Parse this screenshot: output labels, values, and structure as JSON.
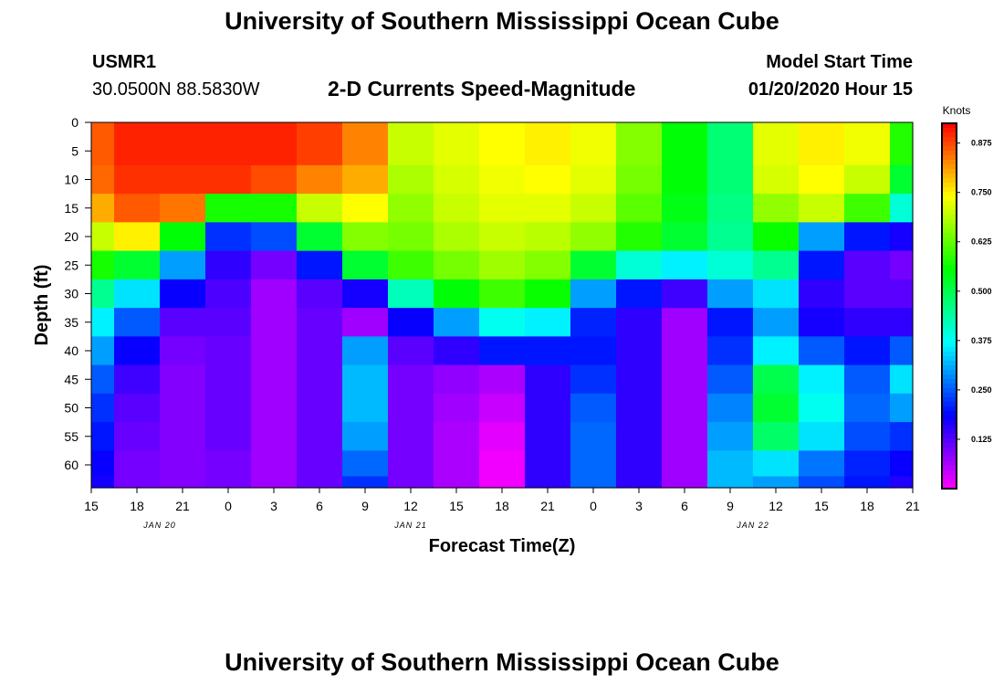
{
  "header": {
    "title": "University of Southern Mississippi Ocean Cube",
    "station": "USMR1",
    "coords": "30.0500N 88.5830W",
    "subtitle": "2-D Currents Speed-Magnitude",
    "model_label": "Model Start Time",
    "model_time": "01/20/2020 Hour 15"
  },
  "footer": {
    "title": "University of Southern Mississippi Ocean Cube"
  },
  "chart_data": {
    "type": "heatmap",
    "title": "2-D Currents Speed-Magnitude",
    "xlabel": "Forecast Time(Z)",
    "ylabel": "Depth (ft)",
    "x_ticks": [
      "15",
      "18",
      "21",
      "0",
      "3",
      "6",
      "9",
      "12",
      "15",
      "18",
      "21",
      "0",
      "3",
      "6",
      "9",
      "12",
      "15",
      "18",
      "21"
    ],
    "date_labels": [
      {
        "label": "JAN 20",
        "tick_index": 1.5
      },
      {
        "label": "JAN 21",
        "tick_index": 7
      },
      {
        "label": "JAN 22",
        "tick_index": 14.5
      }
    ],
    "y_ticks": [
      0,
      5,
      10,
      15,
      20,
      25,
      30,
      35,
      40,
      45,
      50,
      55,
      60
    ],
    "ylim": [
      0,
      64
    ],
    "colorbar": {
      "title": "Knots",
      "ticks": [
        "0.875",
        "0.750",
        "0.625",
        "0.500",
        "0.375",
        "0.250",
        "0.125"
      ],
      "range": [
        0,
        0.925
      ]
    },
    "times": [
      "15",
      "18",
      "21",
      "0",
      "3",
      "6",
      "9",
      "12",
      "15",
      "18",
      "21",
      "0",
      "3",
      "6",
      "9",
      "12",
      "15",
      "18",
      "21"
    ],
    "depths": [
      0,
      5,
      10,
      15,
      20,
      25,
      30,
      35,
      40,
      45,
      50,
      55,
      60,
      64
    ],
    "values": [
      [
        0.86,
        0.86,
        0.85,
        0.8,
        0.7,
        0.57,
        0.45,
        0.36,
        0.3,
        0.25,
        0.22,
        0.2,
        0.18,
        0.17
      ],
      [
        0.9,
        0.9,
        0.89,
        0.86,
        0.75,
        0.52,
        0.35,
        0.25,
        0.18,
        0.14,
        0.12,
        0.11,
        0.1,
        0.1
      ],
      [
        0.9,
        0.9,
        0.89,
        0.84,
        0.55,
        0.3,
        0.18,
        0.12,
        0.1,
        0.09,
        0.09,
        0.09,
        0.09,
        0.09
      ],
      [
        0.9,
        0.9,
        0.89,
        0.57,
        0.22,
        0.15,
        0.13,
        0.12,
        0.11,
        0.11,
        0.11,
        0.11,
        0.1,
        0.1
      ],
      [
        0.9,
        0.9,
        0.87,
        0.57,
        0.24,
        0.1,
        0.07,
        0.07,
        0.07,
        0.07,
        0.07,
        0.07,
        0.07,
        0.07
      ],
      [
        0.88,
        0.88,
        0.83,
        0.7,
        0.52,
        0.2,
        0.12,
        0.11,
        0.11,
        0.11,
        0.11,
        0.11,
        0.11,
        0.11
      ],
      [
        0.83,
        0.83,
        0.8,
        0.74,
        0.65,
        0.52,
        0.17,
        0.07,
        0.3,
        0.32,
        0.32,
        0.3,
        0.26,
        0.22
      ],
      [
        0.7,
        0.7,
        0.68,
        0.66,
        0.64,
        0.6,
        0.42,
        0.18,
        0.12,
        0.1,
        0.1,
        0.1,
        0.1,
        0.1
      ],
      [
        0.72,
        0.72,
        0.71,
        0.7,
        0.68,
        0.64,
        0.55,
        0.3,
        0.15,
        0.08,
        0.07,
        0.06,
        0.06,
        0.06
      ],
      [
        0.74,
        0.74,
        0.73,
        0.72,
        0.7,
        0.67,
        0.6,
        0.38,
        0.2,
        0.06,
        0.04,
        0.02,
        0.01,
        0.01
      ],
      [
        0.75,
        0.75,
        0.74,
        0.72,
        0.69,
        0.65,
        0.56,
        0.36,
        0.2,
        0.15,
        0.15,
        0.15,
        0.15,
        0.15
      ],
      [
        0.73,
        0.73,
        0.72,
        0.7,
        0.66,
        0.52,
        0.3,
        0.21,
        0.2,
        0.22,
        0.25,
        0.26,
        0.26,
        0.26
      ],
      [
        0.65,
        0.65,
        0.64,
        0.62,
        0.58,
        0.4,
        0.2,
        0.15,
        0.15,
        0.15,
        0.15,
        0.15,
        0.15,
        0.15
      ],
      [
        0.55,
        0.55,
        0.55,
        0.54,
        0.52,
        0.36,
        0.14,
        0.07,
        0.07,
        0.07,
        0.07,
        0.07,
        0.07,
        0.07
      ],
      [
        0.47,
        0.47,
        0.47,
        0.46,
        0.45,
        0.4,
        0.3,
        0.2,
        0.22,
        0.25,
        0.28,
        0.3,
        0.32,
        0.32
      ],
      [
        0.72,
        0.72,
        0.71,
        0.66,
        0.56,
        0.45,
        0.35,
        0.3,
        0.36,
        0.5,
        0.52,
        0.48,
        0.35,
        0.3
      ],
      [
        0.75,
        0.75,
        0.74,
        0.7,
        0.3,
        0.2,
        0.15,
        0.17,
        0.25,
        0.36,
        0.38,
        0.35,
        0.27,
        0.24
      ],
      [
        0.73,
        0.73,
        0.7,
        0.6,
        0.2,
        0.12,
        0.12,
        0.15,
        0.2,
        0.25,
        0.26,
        0.24,
        0.21,
        0.2
      ],
      [
        0.58,
        0.58,
        0.52,
        0.4,
        0.17,
        0.1,
        0.12,
        0.15,
        0.25,
        0.35,
        0.3,
        0.22,
        0.18,
        0.16
      ]
    ]
  }
}
